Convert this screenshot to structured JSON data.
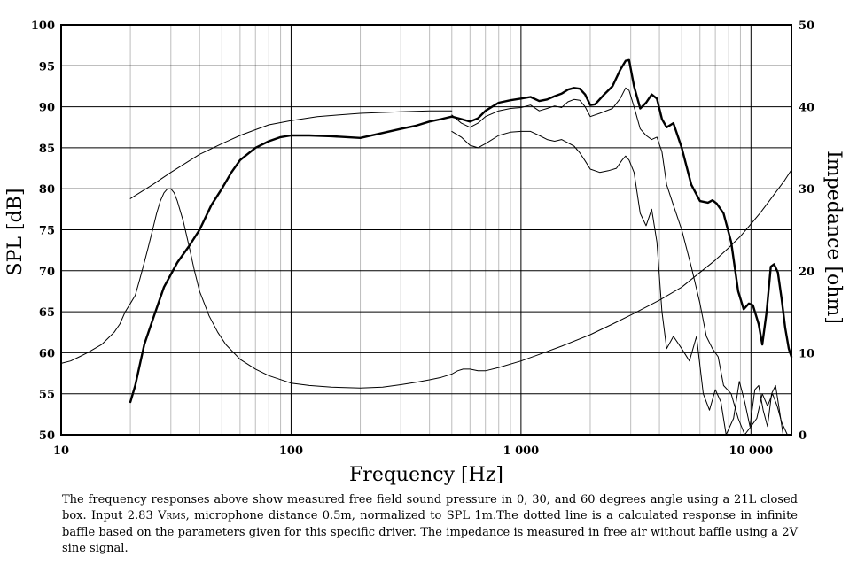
{
  "chart_data": {
    "type": "line",
    "xlabel": "Frequency [Hz]",
    "ylabel": "SPL [dB]",
    "y2label": "Impedance [ohm]",
    "x_scale": "log",
    "xlim": [
      10,
      15000
    ],
    "ylim": [
      50,
      100
    ],
    "y2lim": [
      0,
      50
    ],
    "grid": true,
    "x_ticks": [
      {
        "value": 10,
        "label": "10"
      },
      {
        "value": 100,
        "label": "100"
      },
      {
        "value": 1000,
        "label": "1 000"
      },
      {
        "value": 10000,
        "label": "10 000"
      }
    ],
    "y_ticks": [
      {
        "value": 50,
        "label": "50"
      },
      {
        "value": 55,
        "label": "55"
      },
      {
        "value": 60,
        "label": "60"
      },
      {
        "value": 65,
        "label": "65"
      },
      {
        "value": 70,
        "label": "70"
      },
      {
        "value": 75,
        "label": "75"
      },
      {
        "value": 80,
        "label": "80"
      },
      {
        "value": 85,
        "label": "85"
      },
      {
        "value": 90,
        "label": "90"
      },
      {
        "value": 95,
        "label": "95"
      },
      {
        "value": 100,
        "label": "100"
      }
    ],
    "y2_ticks": [
      {
        "value": 0,
        "label": "0"
      },
      {
        "value": 10,
        "label": "10"
      },
      {
        "value": 20,
        "label": "20"
      },
      {
        "value": 30,
        "label": "30"
      },
      {
        "value": 40,
        "label": "40"
      },
      {
        "value": 50,
        "label": "50"
      }
    ],
    "series": [
      {
        "axis": "left",
        "weight": "heavy",
        "points": [
          [
            20,
            54
          ],
          [
            21,
            56
          ],
          [
            23,
            61
          ],
          [
            25,
            64
          ],
          [
            28,
            68
          ],
          [
            32,
            71
          ],
          [
            36,
            73
          ],
          [
            40,
            75
          ],
          [
            45,
            78
          ],
          [
            50,
            80
          ],
          [
            55,
            82
          ],
          [
            60,
            83.5
          ],
          [
            70,
            85
          ],
          [
            80,
            85.8
          ],
          [
            90,
            86.3
          ],
          [
            100,
            86.5
          ],
          [
            120,
            86.5
          ],
          [
            150,
            86.4
          ],
          [
            200,
            86.2
          ],
          [
            250,
            86.8
          ],
          [
            300,
            87.3
          ],
          [
            350,
            87.7
          ],
          [
            400,
            88.2
          ],
          [
            450,
            88.5
          ],
          [
            500,
            88.8
          ],
          [
            550,
            88.5
          ],
          [
            600,
            88.2
          ],
          [
            650,
            88.6
          ],
          [
            700,
            89.5
          ],
          [
            800,
            90.5
          ],
          [
            900,
            90.8
          ],
          [
            1000,
            91.0
          ],
          [
            1100,
            91.2
          ],
          [
            1200,
            90.7
          ],
          [
            1300,
            90.9
          ],
          [
            1400,
            91.3
          ],
          [
            1500,
            91.6
          ],
          [
            1600,
            92.1
          ],
          [
            1700,
            92.3
          ],
          [
            1800,
            92.2
          ],
          [
            1900,
            91.5
          ],
          [
            2000,
            90.2
          ],
          [
            2100,
            90.3
          ],
          [
            2300,
            91.5
          ],
          [
            2500,
            92.5
          ],
          [
            2700,
            94.5
          ],
          [
            2850,
            95.6
          ],
          [
            2950,
            95.7
          ],
          [
            3100,
            92.5
          ],
          [
            3300,
            89.8
          ],
          [
            3500,
            90.5
          ],
          [
            3700,
            91.5
          ],
          [
            3900,
            91.0
          ],
          [
            4100,
            88.5
          ],
          [
            4300,
            87.5
          ],
          [
            4600,
            88.0
          ],
          [
            5000,
            85.0
          ],
          [
            5500,
            80.5
          ],
          [
            6000,
            78.5
          ],
          [
            6500,
            78.3
          ],
          [
            6800,
            78.6
          ],
          [
            7100,
            78.2
          ],
          [
            7600,
            77.0
          ],
          [
            8200,
            73.5
          ],
          [
            8800,
            67.5
          ],
          [
            9300,
            65.3
          ],
          [
            9800,
            66.0
          ],
          [
            10200,
            65.8
          ],
          [
            10800,
            63.5
          ],
          [
            11200,
            61.0
          ],
          [
            11700,
            65.0
          ],
          [
            12200,
            70.5
          ],
          [
            12600,
            70.8
          ],
          [
            13100,
            69.8
          ],
          [
            13600,
            66.5
          ],
          [
            14100,
            63.0
          ],
          [
            14600,
            60.5
          ],
          [
            15000,
            59.5
          ]
        ]
      },
      {
        "axis": "left",
        "weight": "thin",
        "points": [
          [
            500,
            89.0
          ],
          [
            550,
            88.0
          ],
          [
            600,
            87.5
          ],
          [
            650,
            88.0
          ],
          [
            700,
            88.8
          ],
          [
            800,
            89.5
          ],
          [
            900,
            89.8
          ],
          [
            1000,
            89.9
          ],
          [
            1100,
            90.2
          ],
          [
            1200,
            89.5
          ],
          [
            1300,
            89.8
          ],
          [
            1400,
            90.1
          ],
          [
            1500,
            89.9
          ],
          [
            1600,
            90.6
          ],
          [
            1700,
            90.9
          ],
          [
            1800,
            90.8
          ],
          [
            1900,
            90.0
          ],
          [
            2000,
            88.8
          ],
          [
            2200,
            89.2
          ],
          [
            2500,
            89.8
          ],
          [
            2700,
            91.0
          ],
          [
            2850,
            92.3
          ],
          [
            2950,
            92.0
          ],
          [
            3100,
            90.0
          ],
          [
            3300,
            87.3
          ],
          [
            3500,
            86.5
          ],
          [
            3700,
            86.0
          ],
          [
            3900,
            86.3
          ],
          [
            4100,
            84.5
          ],
          [
            4300,
            80.5
          ],
          [
            4600,
            78.0
          ],
          [
            5000,
            75.0
          ],
          [
            5500,
            70.5
          ],
          [
            6000,
            66.0
          ],
          [
            6400,
            62.0
          ],
          [
            6800,
            60.5
          ],
          [
            7200,
            59.5
          ],
          [
            7600,
            56.0
          ],
          [
            8200,
            55.0
          ],
          [
            8800,
            52.0
          ],
          [
            9400,
            50.0
          ],
          [
            10000,
            51.0
          ],
          [
            10600,
            52.0
          ],
          [
            11200,
            55.0
          ],
          [
            11800,
            53.5
          ],
          [
            12400,
            55.0
          ],
          [
            13000,
            53.5
          ],
          [
            13600,
            51.5
          ],
          [
            14400,
            50.0
          ]
        ]
      },
      {
        "axis": "left",
        "weight": "thin",
        "points": [
          [
            500,
            87.0
          ],
          [
            550,
            86.3
          ],
          [
            600,
            85.3
          ],
          [
            650,
            85.0
          ],
          [
            700,
            85.5
          ],
          [
            800,
            86.5
          ],
          [
            900,
            86.9
          ],
          [
            1000,
            87.0
          ],
          [
            1100,
            87.0
          ],
          [
            1200,
            86.5
          ],
          [
            1300,
            86.0
          ],
          [
            1400,
            85.8
          ],
          [
            1500,
            86.0
          ],
          [
            1600,
            85.6
          ],
          [
            1700,
            85.2
          ],
          [
            1800,
            84.4
          ],
          [
            1900,
            83.4
          ],
          [
            2000,
            82.4
          ],
          [
            2200,
            82.0
          ],
          [
            2400,
            82.2
          ],
          [
            2600,
            82.5
          ],
          [
            2750,
            83.5
          ],
          [
            2850,
            84.0
          ],
          [
            2950,
            83.5
          ],
          [
            3100,
            82.0
          ],
          [
            3300,
            77.0
          ],
          [
            3500,
            75.5
          ],
          [
            3700,
            77.5
          ],
          [
            3900,
            73.5
          ],
          [
            4100,
            65.0
          ],
          [
            4300,
            60.5
          ],
          [
            4600,
            62.0
          ],
          [
            5000,
            60.5
          ],
          [
            5400,
            59.0
          ],
          [
            5800,
            62.0
          ],
          [
            6200,
            55.0
          ],
          [
            6600,
            53.0
          ],
          [
            7000,
            55.5
          ],
          [
            7400,
            54.0
          ],
          [
            7800,
            50.0
          ],
          [
            8400,
            52.0
          ],
          [
            8900,
            56.5
          ],
          [
            9400,
            54.0
          ],
          [
            9900,
            51.0
          ],
          [
            10400,
            55.5
          ],
          [
            10800,
            56.0
          ],
          [
            11300,
            53.0
          ],
          [
            11800,
            51.0
          ],
          [
            12300,
            55.0
          ],
          [
            12800,
            56.0
          ],
          [
            13300,
            53.0
          ],
          [
            13800,
            50.0
          ]
        ]
      },
      {
        "axis": "left",
        "weight": "thin",
        "points": [
          [
            20,
            78.8
          ],
          [
            25,
            80.5
          ],
          [
            30,
            82.0
          ],
          [
            40,
            84.2
          ],
          [
            50,
            85.5
          ],
          [
            60,
            86.5
          ],
          [
            70,
            87.2
          ],
          [
            80,
            87.8
          ],
          [
            100,
            88.3
          ],
          [
            130,
            88.8
          ],
          [
            160,
            89.0
          ],
          [
            200,
            89.2
          ],
          [
            300,
            89.4
          ],
          [
            400,
            89.5
          ],
          [
            500,
            89.5
          ]
        ]
      },
      {
        "axis": "right",
        "weight": "thin",
        "points": [
          [
            10,
            8.7
          ],
          [
            11,
            9.0
          ],
          [
            12,
            9.5
          ],
          [
            13,
            10.0
          ],
          [
            15,
            11.0
          ],
          [
            17,
            12.5
          ],
          [
            18,
            13.5
          ],
          [
            19,
            15.0
          ],
          [
            20,
            16.0
          ],
          [
            21,
            17.0
          ],
          [
            22,
            19.0
          ],
          [
            23,
            21.0
          ],
          [
            24,
            23.0
          ],
          [
            25,
            25.0
          ],
          [
            26,
            27.0
          ],
          [
            27,
            28.5
          ],
          [
            28,
            29.5
          ],
          [
            29,
            30.0
          ],
          [
            30,
            30.0
          ],
          [
            31,
            29.5
          ],
          [
            32,
            28.5
          ],
          [
            34,
            26.0
          ],
          [
            36,
            23.0
          ],
          [
            38,
            20.0
          ],
          [
            40,
            17.5
          ],
          [
            44,
            14.5
          ],
          [
            48,
            12.5
          ],
          [
            52,
            11.0
          ],
          [
            60,
            9.2
          ],
          [
            70,
            8.0
          ],
          [
            80,
            7.2
          ],
          [
            100,
            6.3
          ],
          [
            120,
            6.0
          ],
          [
            150,
            5.8
          ],
          [
            200,
            5.7
          ],
          [
            250,
            5.8
          ],
          [
            300,
            6.1
          ],
          [
            350,
            6.4
          ],
          [
            400,
            6.7
          ],
          [
            450,
            7.0
          ],
          [
            500,
            7.4
          ],
          [
            530,
            7.8
          ],
          [
            560,
            8.0
          ],
          [
            600,
            8.0
          ],
          [
            650,
            7.8
          ],
          [
            700,
            7.8
          ],
          [
            800,
            8.2
          ],
          [
            1000,
            9.0
          ],
          [
            1200,
            9.8
          ],
          [
            1500,
            10.8
          ],
          [
            2000,
            12.2
          ],
          [
            2500,
            13.5
          ],
          [
            3000,
            14.6
          ],
          [
            4000,
            16.4
          ],
          [
            5000,
            18.0
          ],
          [
            6000,
            19.8
          ],
          [
            7000,
            21.3
          ],
          [
            8000,
            22.8
          ],
          [
            9000,
            24.2
          ],
          [
            10000,
            25.7
          ],
          [
            11000,
            27.1
          ],
          [
            12000,
            28.5
          ],
          [
            13000,
            29.8
          ],
          [
            14000,
            31.0
          ],
          [
            15000,
            32.3
          ]
        ]
      }
    ]
  },
  "caption": {
    "line1_prefix": "The frequency responses above show measured free field sound pressure in 0, 30, and 60 degrees angle using a 21L closed box. Input 2.83 ",
    "vrms_v": "V",
    "vrms_rms": "RMS",
    "line_rest": ", microphone distance 0.5m, normalized to SPL 1m.The dotted line is a calculated response in infinite baffle based on the parameters given for this specific driver. The impedance is measured in free air without baffle using a 2V sine signal."
  }
}
